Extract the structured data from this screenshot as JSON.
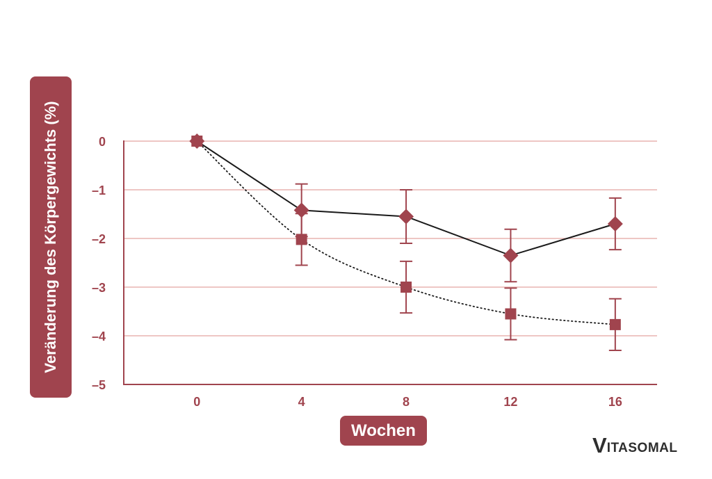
{
  "chart_data": {
    "type": "line",
    "xlabel": "Wochen",
    "ylabel": "Veränderung des Körpergewichts (%)",
    "x_ticks": [
      0,
      4,
      8,
      12,
      16
    ],
    "y_ticks": [
      0,
      -1,
      -2,
      -3,
      -4,
      -5
    ],
    "y_tick_labels": [
      "0",
      "–1",
      "–2",
      "–3",
      "–4",
      "–5"
    ],
    "xlim": [
      -2.8,
      17.6
    ],
    "ylim": [
      -5,
      0
    ],
    "grid": "horizontal",
    "colors": {
      "accent": "#a0444e",
      "grid": "#e8b4b0",
      "line": "#1a1a1a",
      "tick_text": "#a0444e"
    },
    "series": [
      {
        "marker": "diamond",
        "line_style": "solid",
        "x": [
          0,
          4,
          8,
          12,
          16
        ],
        "y": [
          0,
          -1.42,
          -1.55,
          -2.35,
          -1.7
        ],
        "error": [
          0,
          0.54,
          0.55,
          0.54,
          0.53
        ]
      },
      {
        "marker": "square",
        "line_style": "dotted",
        "x": [
          0,
          4,
          8,
          12,
          16
        ],
        "y": [
          0,
          -2.02,
          -3.0,
          -3.55,
          -3.77
        ],
        "error": [
          0,
          0.53,
          0.53,
          0.53,
          0.53
        ]
      }
    ]
  },
  "brand": {
    "logo_initial": "V",
    "logo_rest": "ITASOMAL"
  }
}
